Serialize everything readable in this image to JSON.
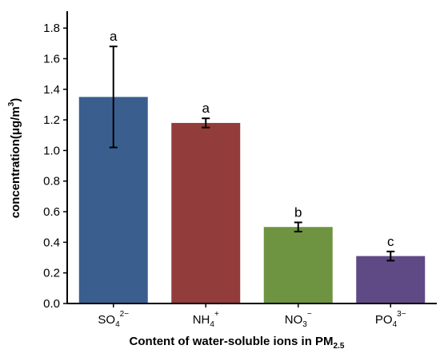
{
  "chart_data": {
    "type": "bar",
    "categories": [
      {
        "base": "SO",
        "sub": "4",
        "sup": "2−"
      },
      {
        "base": "NH",
        "sub": "4",
        "sup": "+"
      },
      {
        "base": "NO",
        "sub": "3",
        "sup": "−"
      },
      {
        "base": "PO",
        "sub": "4",
        "sup": "3−"
      }
    ],
    "values": [
      1.35,
      1.18,
      0.5,
      0.31
    ],
    "error_low": [
      1.02,
      1.15,
      0.47,
      0.28
    ],
    "error_high": [
      1.68,
      1.21,
      0.53,
      0.34
    ],
    "significance_labels": [
      "a",
      "a",
      "b",
      "c"
    ],
    "colors": [
      "#3a5f8f",
      "#923c3b",
      "#6e9441",
      "#5f4a85"
    ],
    "ylim": [
      0.0,
      1.9
    ],
    "yticks": [
      "0.0",
      "0.2",
      "0.4",
      "0.6",
      "0.8",
      "1.0",
      "1.2",
      "1.4",
      "1.6",
      "1.8"
    ],
    "ylabel": {
      "text": "concentration(μg/m",
      "sup": "3",
      "close": ")"
    },
    "xlabel": {
      "text": "Content of water-soluble ions in PM",
      "sub": "2.5"
    },
    "grid": false,
    "legend": "none"
  }
}
